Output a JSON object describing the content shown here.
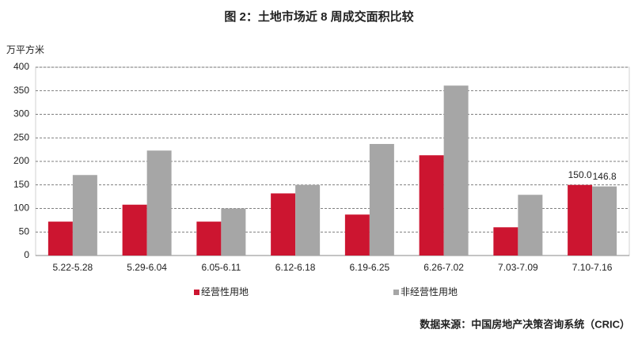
{
  "chart_data": {
    "type": "bar",
    "title": "图 2：土地市场近 8 周成交面积比较",
    "y_label": "万平方米",
    "source": "数据来源：中国房地产决策咨询系统（CRIC）",
    "categories": [
      "5.22-5.28",
      "5.29-6.04",
      "6.05-6.11",
      "6.12-6.18",
      "6.19-6.25",
      "6.26-7.02",
      "7.03-7.09",
      "7.10-7.16"
    ],
    "series": [
      {
        "name": "经营性用地",
        "color": "#cc1530",
        "values": [
          72,
          108,
          72,
          132,
          87,
          213,
          60,
          150.0
        ],
        "value_labels": [
          null,
          null,
          null,
          null,
          null,
          null,
          null,
          "150.0"
        ]
      },
      {
        "name": "非经营性用地",
        "color": "#a6a6a6",
        "values": [
          171,
          223,
          100,
          150,
          237,
          361,
          129,
          146.8
        ],
        "value_labels": [
          null,
          null,
          null,
          null,
          null,
          null,
          null,
          "146.8"
        ]
      }
    ],
    "ylim": [
      0,
      400
    ],
    "yticks": [
      0,
      50,
      100,
      150,
      200,
      250,
      300,
      350,
      400
    ],
    "grid": true
  }
}
